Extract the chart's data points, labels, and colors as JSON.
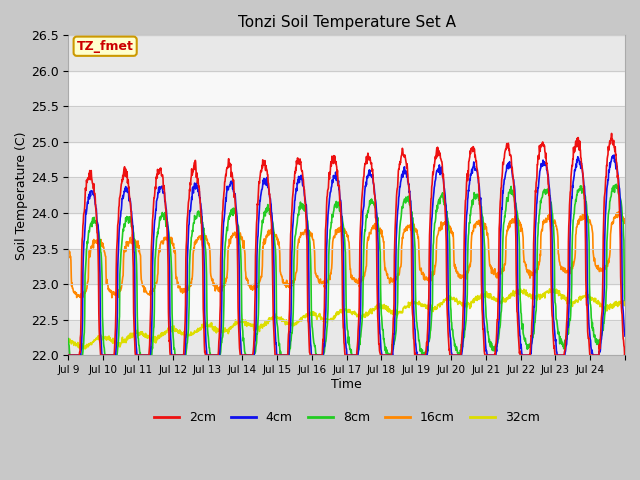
{
  "title": "Tonzi Soil Temperature Set A",
  "xlabel": "Time",
  "ylabel": "Soil Temperature (C)",
  "annotation": "TZ_fmet",
  "annotation_color": "#cc0000",
  "annotation_bg": "#ffffcc",
  "annotation_border": "#cc9900",
  "ylim": [
    22.0,
    26.5
  ],
  "series_colors": [
    "#ee1111",
    "#1111ee",
    "#22cc22",
    "#ff8800",
    "#dddd00"
  ],
  "series_labels": [
    "2cm",
    "4cm",
    "8cm",
    "16cm",
    "32cm"
  ],
  "x_tick_labels": [
    "Jul 9",
    "Jul 10",
    "Jul 11",
    "Jul 12",
    "Jul 13",
    "Jul 14",
    "Jul 15",
    "Jul 16",
    "Jul 17",
    "Jul 18",
    "Jul 19",
    "Jul 20",
    "Jul 21",
    "Jul 22",
    "Jul 23",
    "Jul 24"
  ],
  "n_days": 16,
  "samples_per_day": 96,
  "fig_bg": "#c8c8c8",
  "plot_bg": "#ffffff",
  "band_colors": [
    "#e8e8e8",
    "#f8f8f8"
  ]
}
